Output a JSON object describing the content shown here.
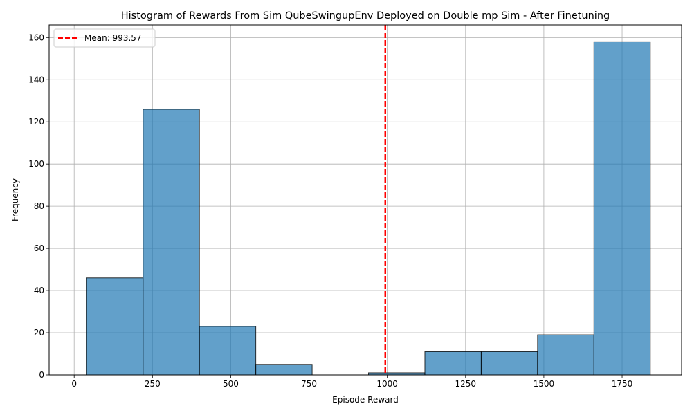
{
  "chart_data": {
    "type": "bar",
    "title": "Histogram of Rewards From Sim QubeSwingupEnv Deployed on Double mp Sim - After Finetuning",
    "xlabel": "Episode Reward",
    "ylabel": "Frequency",
    "xlim": [
      -80,
      1940
    ],
    "ylim": [
      0,
      166
    ],
    "xticks": [
      0,
      250,
      500,
      750,
      1000,
      1250,
      1500,
      1750
    ],
    "yticks": [
      0,
      20,
      40,
      60,
      80,
      100,
      120,
      140,
      160
    ],
    "grid": true,
    "bar_color": "#1f77b4",
    "bins": [
      {
        "x0": 40,
        "x1": 220,
        "count": 46
      },
      {
        "x0": 220,
        "x1": 400,
        "count": 126
      },
      {
        "x0": 400,
        "x1": 580,
        "count": 23
      },
      {
        "x0": 580,
        "x1": 760,
        "count": 5
      },
      {
        "x0": 760,
        "x1": 940,
        "count": 0
      },
      {
        "x0": 940,
        "x1": 1120,
        "count": 1
      },
      {
        "x0": 1120,
        "x1": 1300,
        "count": 11
      },
      {
        "x0": 1300,
        "x1": 1480,
        "count": 11
      },
      {
        "x0": 1480,
        "x1": 1660,
        "count": 19
      },
      {
        "x0": 1660,
        "x1": 1840,
        "count": 158
      }
    ],
    "mean_line": {
      "value": 993.57,
      "color": "#ff0000",
      "label": "Mean: 993.57"
    },
    "legend": {
      "position": "top-left",
      "entries": [
        "Mean: 993.57"
      ]
    }
  }
}
